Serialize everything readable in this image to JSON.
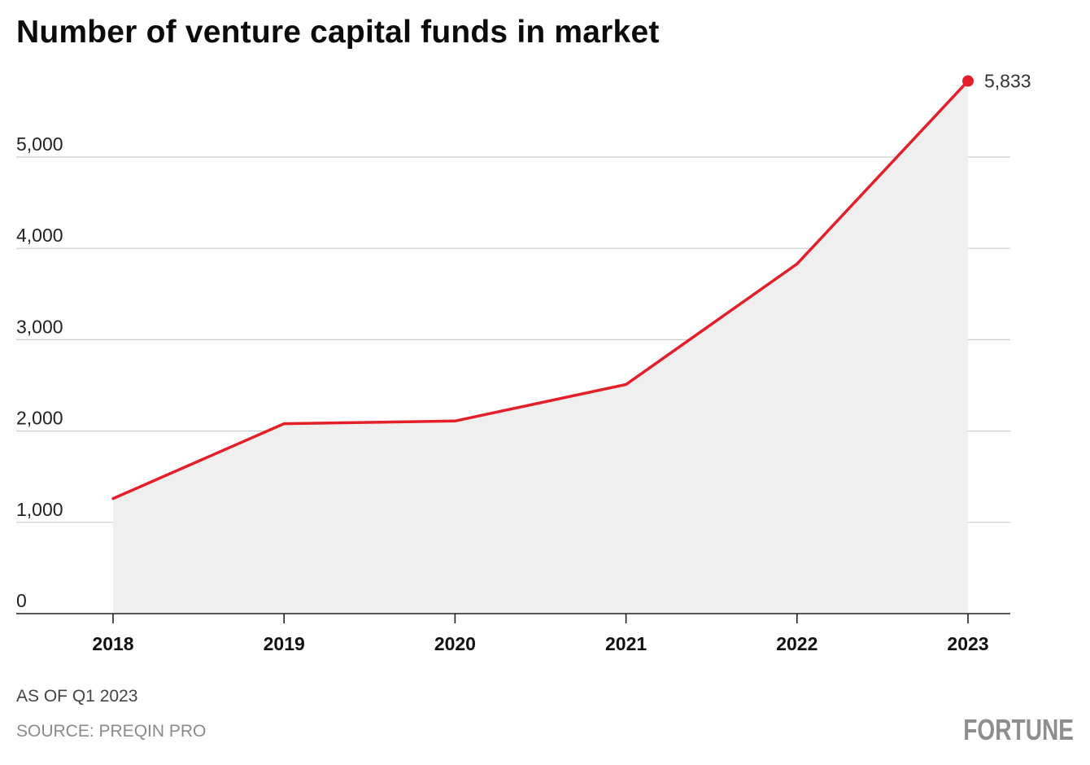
{
  "title": "Number of venture capital funds in market",
  "footer": {
    "note": "AS OF Q1 2023",
    "source": "SOURCE: PREQIN PRO",
    "logo": "FORTUNE"
  },
  "colors": {
    "line": "#e3202a",
    "area": "#efefef",
    "grid": "#cccccc",
    "axis": "#222222"
  },
  "chart_data": {
    "type": "area",
    "title": "Number of venture capital funds in market",
    "xlabel": "",
    "ylabel": "",
    "x_ticks": [
      "2018",
      "2019",
      "2020",
      "2021",
      "2022",
      "2023"
    ],
    "y_ticks": [
      0,
      1000,
      2000,
      3000,
      4000,
      5000
    ],
    "y_tick_labels": [
      "0",
      "1,000",
      "2,000",
      "3,000",
      "4,000",
      "5,000"
    ],
    "ylim": [
      0,
      5950
    ],
    "grid": true,
    "series": [
      {
        "x": [
          2018.0,
          2019.0,
          2020.0,
          2021.0,
          2022.0,
          2023.0
        ],
        "y": [
          1260,
          2080,
          2110,
          2510,
          3830,
          5833
        ]
      }
    ],
    "annotations": [
      {
        "x": 2023.0,
        "y": 5833,
        "text": "5,833"
      }
    ]
  }
}
